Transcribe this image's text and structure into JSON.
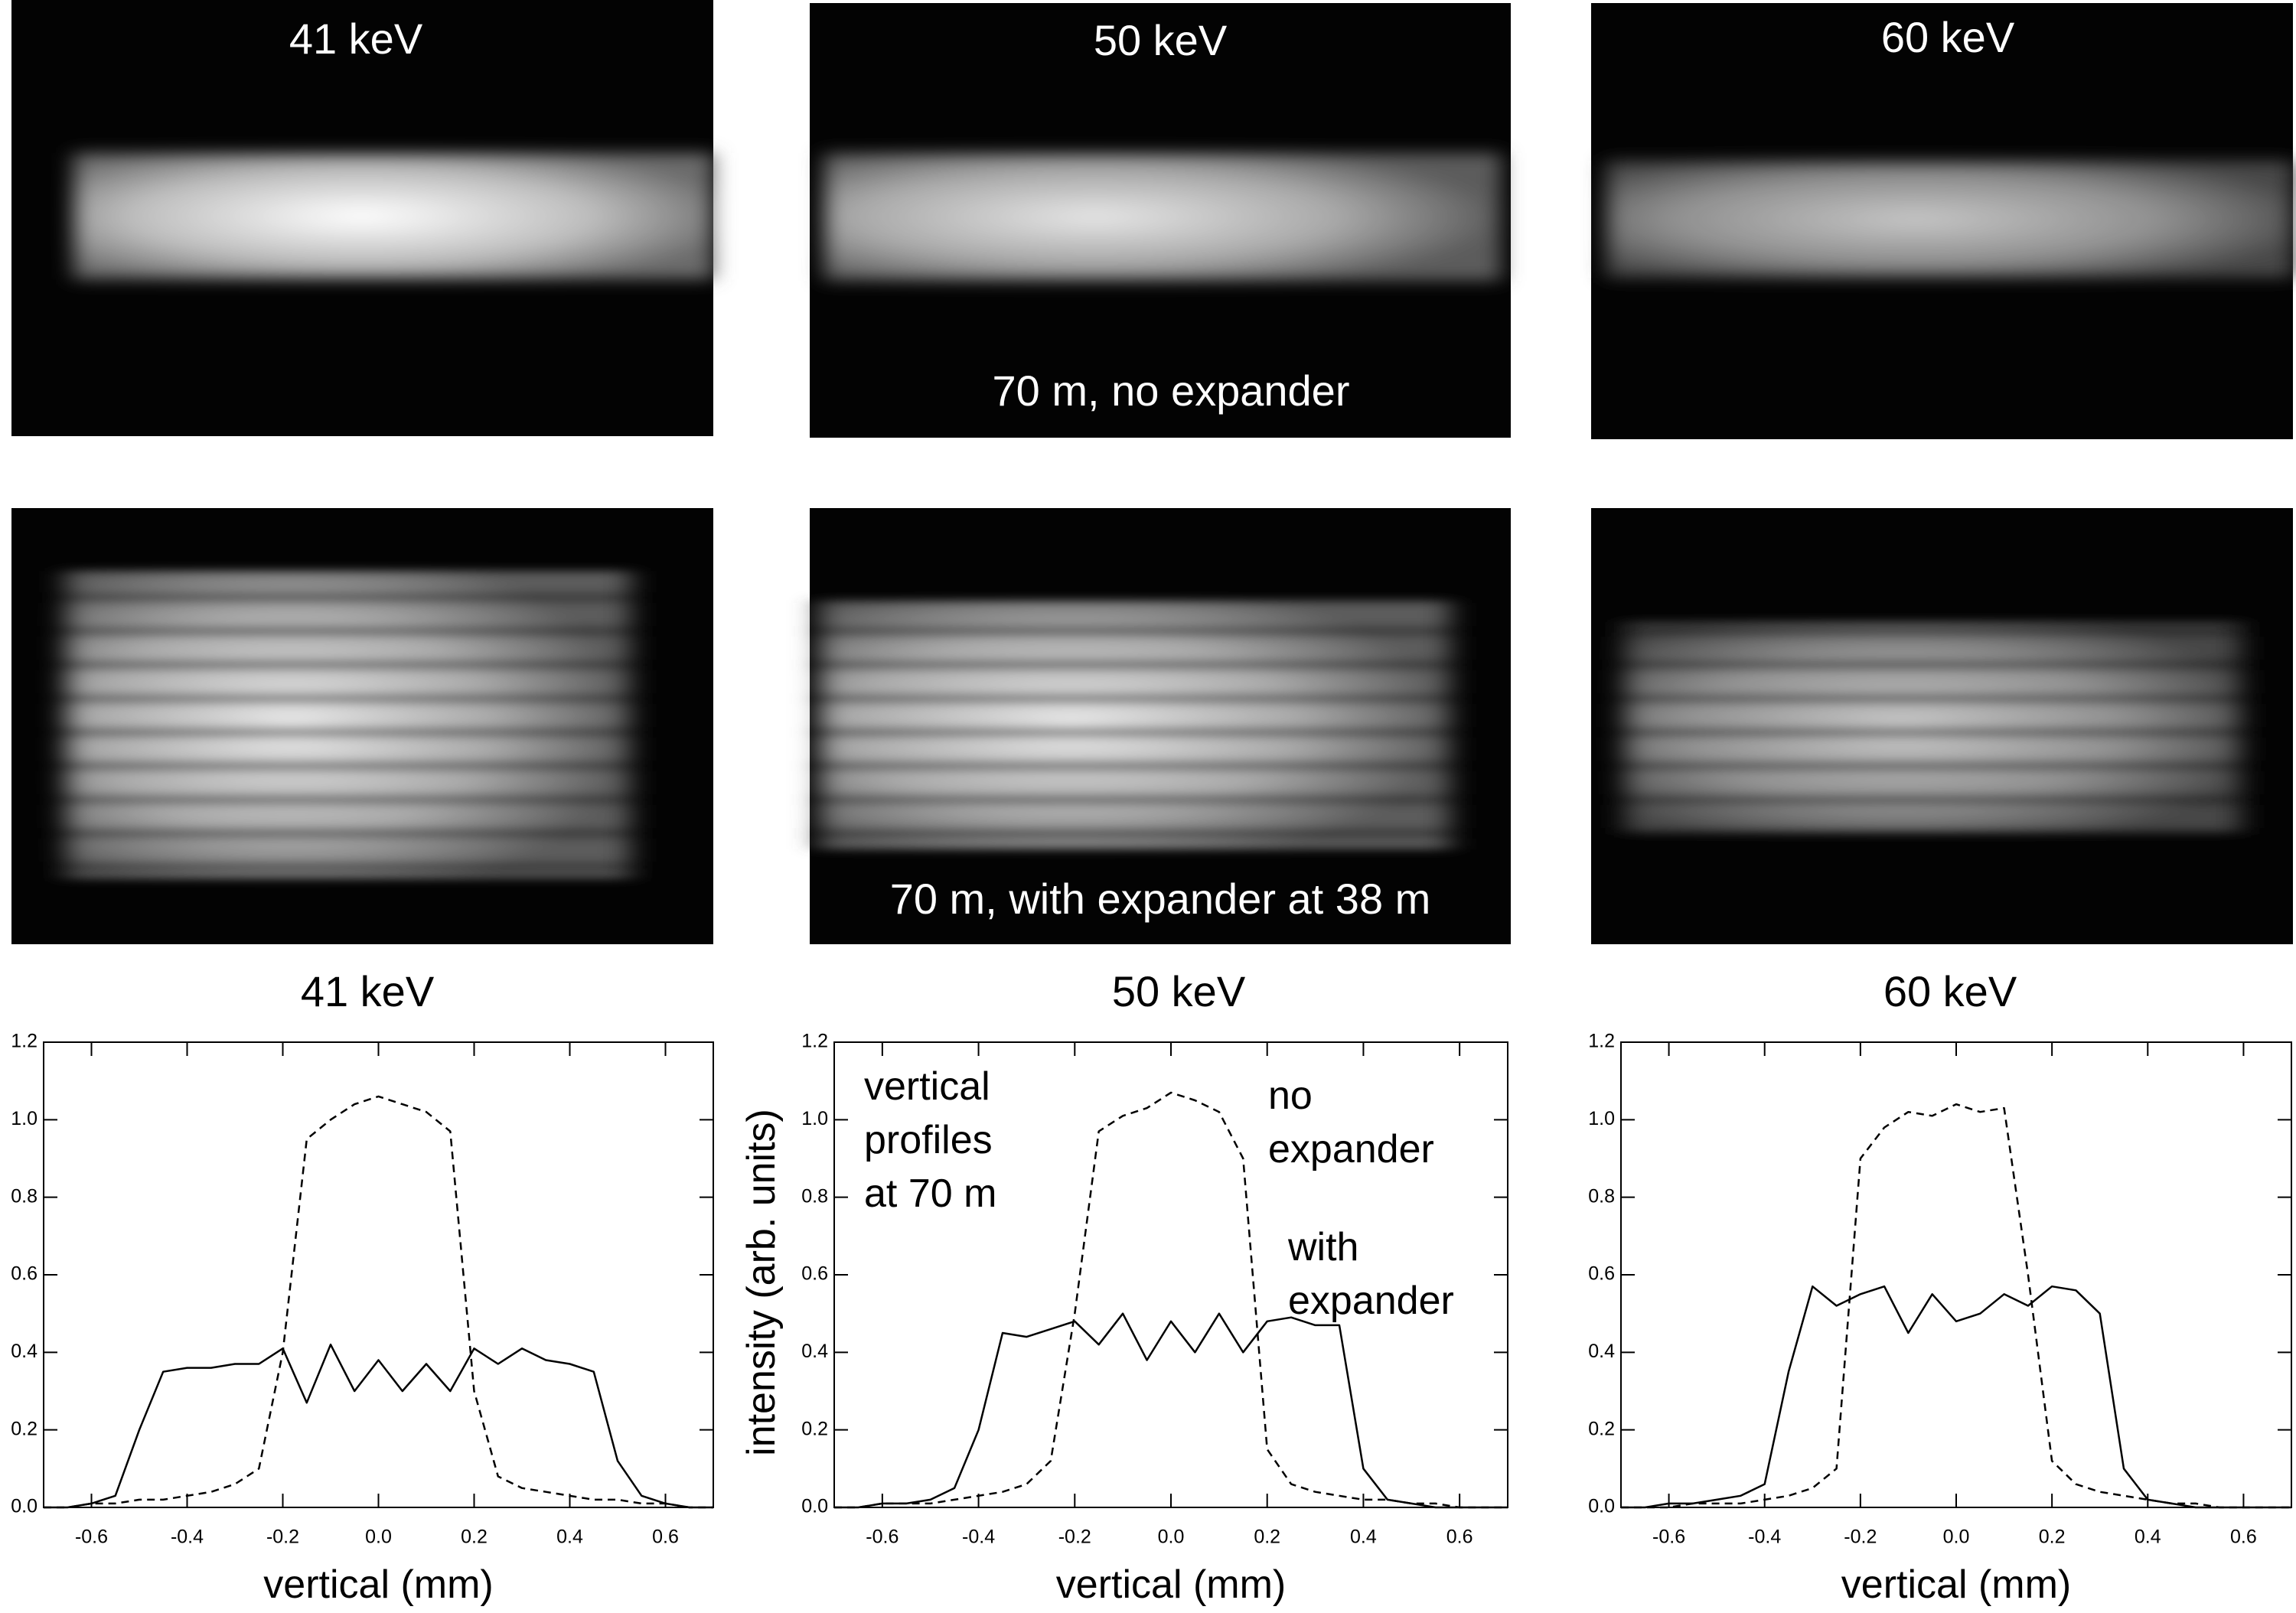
{
  "image_panels": [
    {
      "label": "41 keV"
    },
    {
      "label": "50 keV",
      "note": "70 m, no expander"
    },
    {
      "label": "60 keV"
    },
    {},
    {
      "note": "70 m, with expander at 38 m"
    },
    {}
  ],
  "chart_data": [
    {
      "type": "line",
      "title": "41 keV",
      "xlabel": "vertical (mm)",
      "xlim": [
        -0.7,
        0.7
      ],
      "ylim": [
        0,
        1.2
      ],
      "xticks": [
        -0.6,
        -0.4,
        -0.2,
        {
          "value": 0,
          "label": "0.0"
        },
        0.2,
        0.4,
        0.6
      ],
      "yticks": [
        {
          "value": 0,
          "label": "0.0"
        },
        0.2,
        0.4,
        0.6,
        0.8,
        {
          "value": 1,
          "label": "1.0"
        },
        1.2
      ],
      "x": [
        -0.7,
        -0.65,
        -0.6,
        -0.55,
        -0.5,
        -0.45,
        -0.4,
        -0.35,
        -0.3,
        -0.25,
        -0.2,
        -0.15,
        -0.1,
        -0.05,
        0,
        0.05,
        0.1,
        0.15,
        0.2,
        0.25,
        0.3,
        0.35,
        0.4,
        0.45,
        0.5,
        0.55,
        0.6,
        0.65,
        0.7
      ],
      "series": [
        {
          "color": "#000000",
          "line_style": "dashed",
          "values": [
            0,
            0,
            0.01,
            0.01,
            0.02,
            0.02,
            0.03,
            0.04,
            0.06,
            0.1,
            0.4,
            0.95,
            1.0,
            1.04,
            1.06,
            1.04,
            1.02,
            0.97,
            0.3,
            0.08,
            0.05,
            0.04,
            0.03,
            0.02,
            0.02,
            0.01,
            0.01,
            0,
            0
          ]
        },
        {
          "color": "#000000",
          "line_style": "solid",
          "values": [
            0,
            0,
            0.01,
            0.03,
            0.2,
            0.35,
            0.36,
            0.36,
            0.37,
            0.37,
            0.41,
            0.27,
            0.42,
            0.3,
            0.38,
            0.3,
            0.37,
            0.3,
            0.41,
            0.37,
            0.41,
            0.38,
            0.37,
            0.35,
            0.12,
            0.03,
            0.01,
            0,
            0
          ]
        }
      ]
    },
    {
      "type": "line",
      "title": "50 keV",
      "xlabel": "vertical (mm)",
      "ylabel": "intensity (arb. units)",
      "annotations": [
        [
          "vertical",
          "profiles",
          "at 70 m"
        ],
        [
          "no",
          "expander"
        ],
        [
          "with",
          "expander"
        ]
      ],
      "xlim": [
        -0.7,
        0.7
      ],
      "ylim": [
        0,
        1.2
      ],
      "xticks": [
        -0.6,
        -0.4,
        -0.2,
        {
          "value": 0,
          "label": "0.0"
        },
        0.2,
        0.4,
        0.6
      ],
      "yticks": [
        {
          "value": 0,
          "label": "0.0"
        },
        0.2,
        0.4,
        0.6,
        0.8,
        {
          "value": 1,
          "label": "1.0"
        },
        1.2
      ],
      "x": [
        -0.7,
        -0.65,
        -0.6,
        -0.55,
        -0.5,
        -0.45,
        -0.4,
        -0.35,
        -0.3,
        -0.25,
        -0.2,
        -0.15,
        -0.1,
        -0.05,
        0,
        0.05,
        0.1,
        0.15,
        0.2,
        0.25,
        0.3,
        0.35,
        0.4,
        0.45,
        0.5,
        0.55,
        0.6,
        0.65,
        0.7
      ],
      "series": [
        {
          "color": "#000000",
          "line_style": "dashed",
          "values": [
            0,
            0,
            0.01,
            0.01,
            0.01,
            0.02,
            0.03,
            0.04,
            0.06,
            0.12,
            0.5,
            0.97,
            1.01,
            1.03,
            1.07,
            1.05,
            1.02,
            0.9,
            0.15,
            0.06,
            0.04,
            0.03,
            0.02,
            0.02,
            0.01,
            0.01,
            0,
            0,
            0
          ]
        },
        {
          "color": "#000000",
          "line_style": "solid",
          "values": [
            0,
            0,
            0.01,
            0.01,
            0.02,
            0.05,
            0.2,
            0.45,
            0.44,
            0.46,
            0.48,
            0.42,
            0.5,
            0.38,
            0.48,
            0.4,
            0.5,
            0.4,
            0.48,
            0.49,
            0.47,
            0.47,
            0.1,
            0.02,
            0.01,
            0,
            0,
            0,
            0
          ]
        }
      ]
    },
    {
      "type": "line",
      "title": "60 keV",
      "xlabel": "vertical (mm)",
      "xlim": [
        -0.7,
        0.7
      ],
      "ylim": [
        0,
        1.2
      ],
      "xticks": [
        -0.6,
        -0.4,
        -0.2,
        {
          "value": 0,
          "label": "0.0"
        },
        0.2,
        0.4,
        0.6
      ],
      "yticks": [
        {
          "value": 0,
          "label": "0.0"
        },
        0.2,
        0.4,
        0.6,
        0.8,
        {
          "value": 1,
          "label": "1.0"
        },
        1.2
      ],
      "x": [
        -0.7,
        -0.65,
        -0.6,
        -0.55,
        -0.5,
        -0.45,
        -0.4,
        -0.35,
        -0.3,
        -0.25,
        -0.2,
        -0.15,
        -0.1,
        -0.05,
        0,
        0.05,
        0.1,
        0.15,
        0.2,
        0.25,
        0.3,
        0.35,
        0.4,
        0.45,
        0.5,
        0.55,
        0.6,
        0.65,
        0.7
      ],
      "series": [
        {
          "color": "#000000",
          "line_style": "dashed",
          "values": [
            0,
            0,
            0,
            0.01,
            0.01,
            0.01,
            0.02,
            0.03,
            0.05,
            0.1,
            0.9,
            0.98,
            1.02,
            1.01,
            1.04,
            1.02,
            1.03,
            0.6,
            0.12,
            0.06,
            0.04,
            0.03,
            0.02,
            0.01,
            0.01,
            0,
            0,
            0,
            0
          ]
        },
        {
          "color": "#000000",
          "line_style": "solid",
          "values": [
            0,
            0,
            0.01,
            0.01,
            0.02,
            0.03,
            0.06,
            0.35,
            0.57,
            0.52,
            0.55,
            0.57,
            0.45,
            0.55,
            0.48,
            0.5,
            0.55,
            0.52,
            0.57,
            0.56,
            0.5,
            0.1,
            0.02,
            0.01,
            0,
            0,
            0,
            0,
            0
          ]
        }
      ]
    }
  ]
}
